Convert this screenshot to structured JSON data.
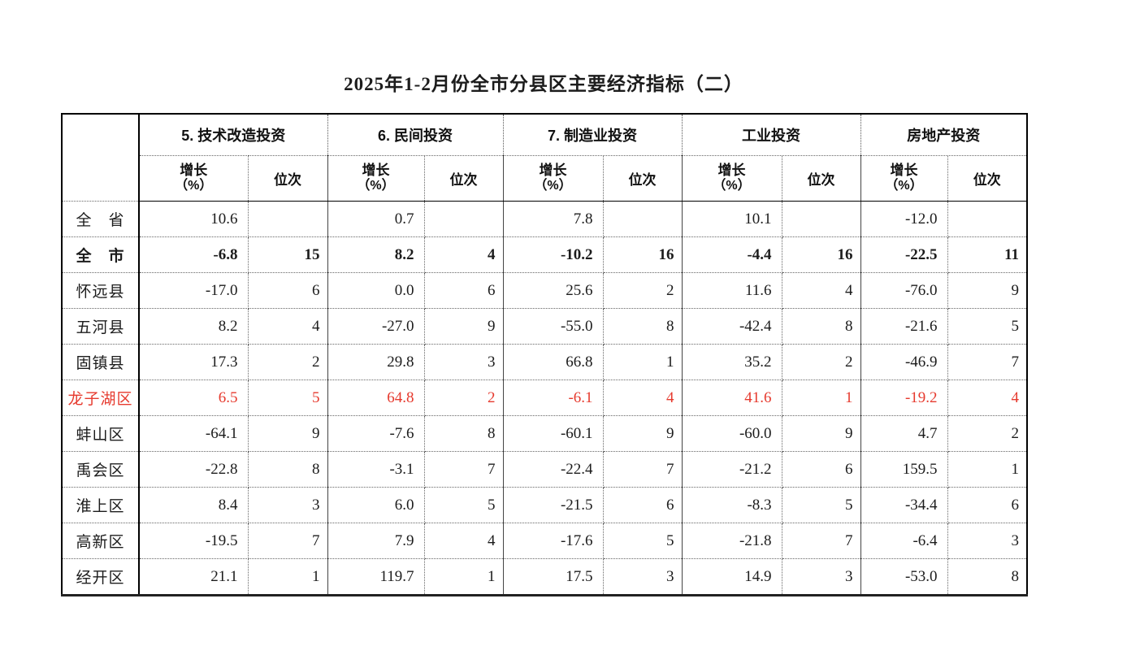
{
  "title": "2025年1-2月份全市分县区主要经济指标（二）",
  "colors": {
    "highlight_red": "#e63a2e",
    "text": "#1c1c1c",
    "border": "#000000"
  },
  "table": {
    "groups": [
      {
        "label": "5. 技术改造投资"
      },
      {
        "label": "6. 民间投资"
      },
      {
        "label": "7. 制造业投资"
      },
      {
        "label": "工业投资"
      },
      {
        "label": "房地产投资"
      }
    ],
    "sub_headers": {
      "growth": "增长",
      "growth_unit": "（%）",
      "rank": "位次"
    },
    "rows": [
      {
        "name": "全　省",
        "bold": false,
        "red": false,
        "cells": [
          "10.6",
          "",
          "0.7",
          "",
          "7.8",
          "",
          "10.1",
          "",
          "-12.0",
          ""
        ]
      },
      {
        "name": "全　市",
        "bold": true,
        "red": false,
        "cells": [
          "-6.8",
          "15",
          "8.2",
          "4",
          "-10.2",
          "16",
          "-4.4",
          "16",
          "-22.5",
          "11"
        ]
      },
      {
        "name": "怀远县",
        "bold": false,
        "red": false,
        "cells": [
          "-17.0",
          "6",
          "0.0",
          "6",
          "25.6",
          "2",
          "11.6",
          "4",
          "-76.0",
          "9"
        ]
      },
      {
        "name": "五河县",
        "bold": false,
        "red": false,
        "cells": [
          "8.2",
          "4",
          "-27.0",
          "9",
          "-55.0",
          "8",
          "-42.4",
          "8",
          "-21.6",
          "5"
        ]
      },
      {
        "name": "固镇县",
        "bold": false,
        "red": false,
        "cells": [
          "17.3",
          "2",
          "29.8",
          "3",
          "66.8",
          "1",
          "35.2",
          "2",
          "-46.9",
          "7"
        ]
      },
      {
        "name": "龙子湖区",
        "bold": false,
        "red": true,
        "cells": [
          "6.5",
          "5",
          "64.8",
          "2",
          "-6.1",
          "4",
          "41.6",
          "1",
          "-19.2",
          "4"
        ]
      },
      {
        "name": "蚌山区",
        "bold": false,
        "red": false,
        "cells": [
          "-64.1",
          "9",
          "-7.6",
          "8",
          "-60.1",
          "9",
          "-60.0",
          "9",
          "4.7",
          "2"
        ]
      },
      {
        "name": "禹会区",
        "bold": false,
        "red": false,
        "cells": [
          "-22.8",
          "8",
          "-3.1",
          "7",
          "-22.4",
          "7",
          "-21.2",
          "6",
          "159.5",
          "1"
        ]
      },
      {
        "name": "淮上区",
        "bold": false,
        "red": false,
        "cells": [
          "8.4",
          "3",
          "6.0",
          "5",
          "-21.5",
          "6",
          "-8.3",
          "5",
          "-34.4",
          "6"
        ]
      },
      {
        "name": "高新区",
        "bold": false,
        "red": false,
        "cells": [
          "-19.5",
          "7",
          "7.9",
          "4",
          "-17.6",
          "5",
          "-21.8",
          "7",
          "-6.4",
          "3"
        ]
      },
      {
        "name": "经开区",
        "bold": false,
        "red": false,
        "cells": [
          "21.1",
          "1",
          "119.7",
          "1",
          "17.5",
          "3",
          "14.9",
          "3",
          "-53.0",
          "8"
        ]
      }
    ]
  }
}
